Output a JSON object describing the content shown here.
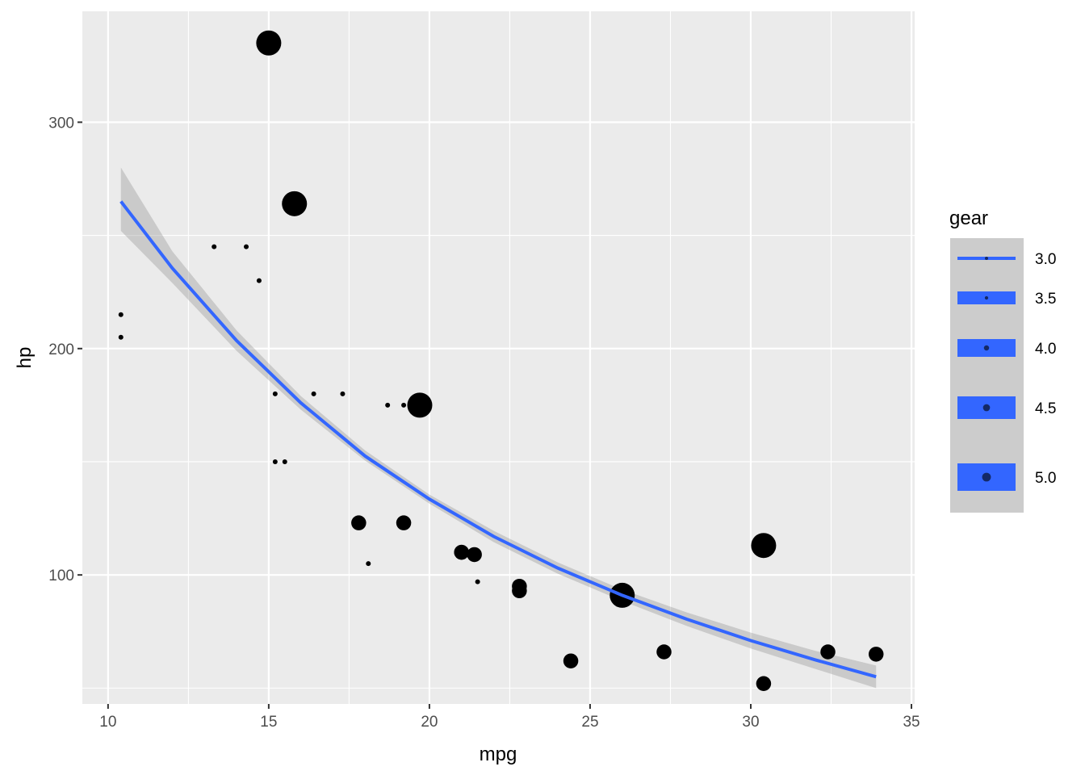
{
  "chart_data": {
    "type": "scatter",
    "xlabel": "mpg",
    "ylabel": "hp",
    "xlim": [
      9.2,
      35.1
    ],
    "ylim": [
      43,
      349
    ],
    "x_ticks": [
      10,
      15,
      20,
      25,
      30,
      35
    ],
    "x_tick_labels": [
      "10",
      "15",
      "20",
      "25",
      "30",
      "35"
    ],
    "y_ticks": [
      100,
      200,
      300
    ],
    "y_tick_labels": [
      "100",
      "200",
      "300"
    ],
    "grid": true,
    "size_variable": "gear",
    "points": [
      {
        "x": 21.0,
        "y": 110,
        "gear": 4
      },
      {
        "x": 21.0,
        "y": 110,
        "gear": 4
      },
      {
        "x": 22.8,
        "y": 93,
        "gear": 4
      },
      {
        "x": 21.4,
        "y": 110,
        "gear": 3
      },
      {
        "x": 18.7,
        "y": 175,
        "gear": 3
      },
      {
        "x": 18.1,
        "y": 105,
        "gear": 3
      },
      {
        "x": 14.3,
        "y": 245,
        "gear": 3
      },
      {
        "x": 24.4,
        "y": 62,
        "gear": 4
      },
      {
        "x": 22.8,
        "y": 95,
        "gear": 4
      },
      {
        "x": 19.2,
        "y": 123,
        "gear": 4
      },
      {
        "x": 17.8,
        "y": 123,
        "gear": 4
      },
      {
        "x": 16.4,
        "y": 180,
        "gear": 3
      },
      {
        "x": 17.3,
        "y": 180,
        "gear": 3
      },
      {
        "x": 15.2,
        "y": 180,
        "gear": 3
      },
      {
        "x": 10.4,
        "y": 205,
        "gear": 3
      },
      {
        "x": 10.4,
        "y": 215,
        "gear": 3
      },
      {
        "x": 14.7,
        "y": 230,
        "gear": 3
      },
      {
        "x": 32.4,
        "y": 66,
        "gear": 4
      },
      {
        "x": 30.4,
        "y": 52,
        "gear": 4
      },
      {
        "x": 33.9,
        "y": 65,
        "gear": 4
      },
      {
        "x": 21.5,
        "y": 97,
        "gear": 3
      },
      {
        "x": 15.5,
        "y": 150,
        "gear": 3
      },
      {
        "x": 15.2,
        "y": 150,
        "gear": 3
      },
      {
        "x": 13.3,
        "y": 245,
        "gear": 3
      },
      {
        "x": 19.2,
        "y": 175,
        "gear": 3
      },
      {
        "x": 27.3,
        "y": 66,
        "gear": 4
      },
      {
        "x": 26.0,
        "y": 91,
        "gear": 5
      },
      {
        "x": 30.4,
        "y": 113,
        "gear": 5
      },
      {
        "x": 15.8,
        "y": 264,
        "gear": 5
      },
      {
        "x": 19.7,
        "y": 175,
        "gear": 5
      },
      {
        "x": 15.0,
        "y": 335,
        "gear": 5
      },
      {
        "x": 21.4,
        "y": 109,
        "gear": 4
      }
    ],
    "smooth_line": {
      "x": [
        10.4,
        12,
        14,
        16,
        18,
        20,
        22,
        24,
        26,
        28,
        30,
        32,
        33.9
      ],
      "y": [
        265,
        235.5,
        203.5,
        176,
        152.5,
        133.5,
        117,
        103,
        91,
        80.5,
        71,
        62.5,
        55
      ],
      "ci_upper": [
        280,
        243,
        208,
        179,
        155,
        135.5,
        119.5,
        105.5,
        93.5,
        83.5,
        74.5,
        66.5,
        60
      ],
      "ci_lower": [
        252,
        229,
        199,
        173,
        150.5,
        131.5,
        114.5,
        100.5,
        88.5,
        77.5,
        67.5,
        58.5,
        50
      ]
    },
    "legend": {
      "title": "gear",
      "position": "right",
      "entries": [
        "3.0",
        "3.5",
        "4.0",
        "4.5",
        "5.0"
      ]
    },
    "colors": {
      "panel_background": "#ebebeb",
      "grid_major": "#ffffff",
      "point": "#000000",
      "line": "#3366ff",
      "ribbon": "#999999",
      "legend_key_background": "#cccccc"
    }
  }
}
